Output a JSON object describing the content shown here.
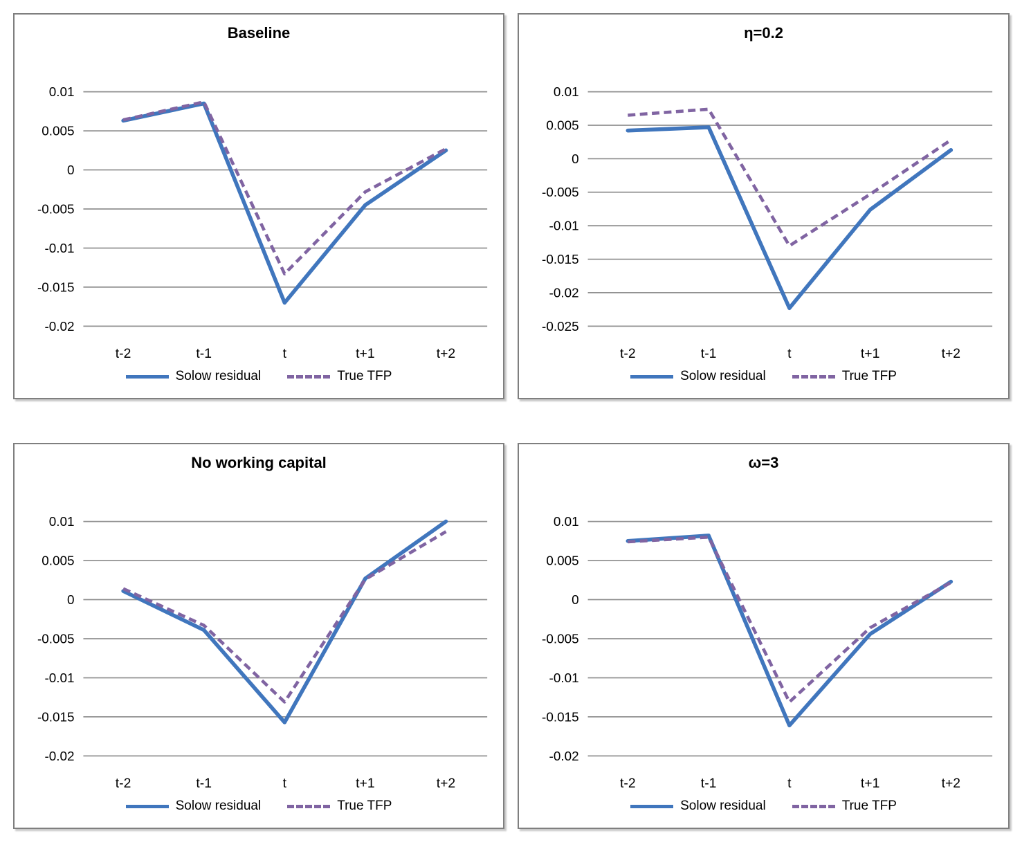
{
  "figure": {
    "background": "#ffffff"
  },
  "colors": {
    "solow_blue": "#4076BD",
    "tfp_purple": "#8064A2",
    "gridline": "#909090",
    "panel_border": "#7F7F7F",
    "text": "#000000"
  },
  "chart_data": [
    {
      "type": "line",
      "title": "Baseline",
      "xlabel": "",
      "ylabel": "",
      "grid": true,
      "legend_position": "bottom",
      "categories": [
        "t-2",
        "t-1",
        "t",
        "t+1",
        "t+2"
      ],
      "yticks": [
        "0.01",
        "0.005",
        "0",
        "-0.005",
        "-0.01",
        "-0.015",
        "-0.02"
      ],
      "ylim": [
        -0.02,
        0.01
      ],
      "series": [
        {
          "name": "Solow residual",
          "style": "solid",
          "color": "solow_blue",
          "values": [
            0.0063,
            0.0085,
            -0.017,
            -0.0045,
            0.0025
          ]
        },
        {
          "name": "True TFP",
          "style": "dashed",
          "color": "tfp_purple",
          "values": [
            0.0064,
            0.0087,
            -0.0133,
            -0.0028,
            0.0027
          ]
        }
      ]
    },
    {
      "type": "line",
      "title": "η=0.2",
      "xlabel": "",
      "ylabel": "",
      "grid": true,
      "legend_position": "bottom",
      "categories": [
        "t-2",
        "t-1",
        "t",
        "t+1",
        "t+2"
      ],
      "yticks": [
        "0.01",
        "0.005",
        "0",
        "-0.005",
        "-0.01",
        "-0.015",
        "-0.02",
        "-0.025"
      ],
      "ylim": [
        -0.025,
        0.01
      ],
      "series": [
        {
          "name": "Solow residual",
          "style": "solid",
          "color": "solow_blue",
          "values": [
            0.0042,
            0.0047,
            -0.0223,
            -0.0076,
            0.0013
          ]
        },
        {
          "name": "True TFP",
          "style": "dashed",
          "color": "tfp_purple",
          "values": [
            0.0065,
            0.0074,
            -0.013,
            -0.0053,
            0.0028
          ]
        }
      ]
    },
    {
      "type": "line",
      "title": "No working capital",
      "xlabel": "",
      "ylabel": "",
      "grid": true,
      "legend_position": "bottom",
      "categories": [
        "t-2",
        "t-1",
        "t",
        "t+1",
        "t+2"
      ],
      "yticks": [
        "0.01",
        "0.005",
        "0",
        "-0.005",
        "-0.01",
        "-0.015",
        "-0.02"
      ],
      "ylim": [
        -0.02,
        0.01
      ],
      "series": [
        {
          "name": "Solow residual",
          "style": "solid",
          "color": "solow_blue",
          "values": [
            0.0011,
            -0.0039,
            -0.0157,
            0.0027,
            0.01
          ]
        },
        {
          "name": "True TFP",
          "style": "dashed",
          "color": "tfp_purple",
          "values": [
            0.0014,
            -0.0033,
            -0.0131,
            0.0026,
            0.0087
          ]
        }
      ]
    },
    {
      "type": "line",
      "title": "ω=3",
      "xlabel": "",
      "ylabel": "",
      "grid": true,
      "legend_position": "bottom",
      "categories": [
        "t-2",
        "t-1",
        "t",
        "t+1",
        "t+2"
      ],
      "yticks": [
        "0.01",
        "0.005",
        "0",
        "-0.005",
        "-0.01",
        "-0.015",
        "-0.02"
      ],
      "ylim": [
        -0.02,
        0.01
      ],
      "series": [
        {
          "name": "Solow residual",
          "style": "solid",
          "color": "solow_blue",
          "values": [
            0.0075,
            0.0082,
            -0.0161,
            -0.0044,
            0.0023
          ]
        },
        {
          "name": "True TFP",
          "style": "dashed",
          "color": "tfp_purple",
          "values": [
            0.0074,
            0.008,
            -0.0131,
            -0.0036,
            0.0022
          ]
        }
      ]
    }
  ]
}
